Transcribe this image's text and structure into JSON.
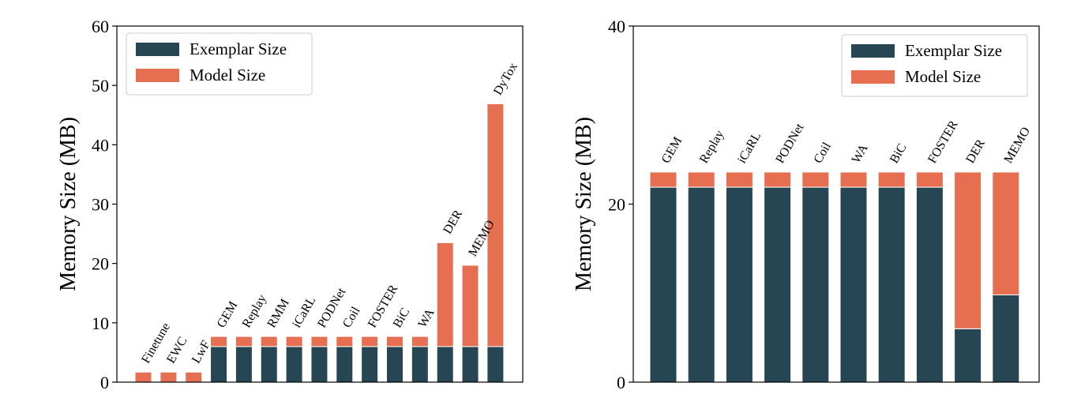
{
  "colors": {
    "exemplar": "#264653",
    "model": "#e76f51"
  },
  "chart_data": [
    {
      "type": "bar",
      "stacked": true,
      "categories": [
        "Finetune",
        "EWC",
        "LwF",
        "GEM",
        "Replay",
        "RMM",
        "iCaRL",
        "PODNet",
        "Coil",
        "FOSTER",
        "BiC",
        "WA",
        "DER",
        "MEMO",
        "DyTox"
      ],
      "series": [
        {
          "name": "Exemplar Size",
          "values": [
            0,
            0,
            0,
            6.0,
            6.0,
            6.0,
            6.0,
            6.0,
            6.0,
            6.0,
            6.0,
            6.0,
            6.0,
            6.0,
            6.0
          ]
        },
        {
          "name": "Model Size",
          "values": [
            1.7,
            1.7,
            1.7,
            1.7,
            1.7,
            1.7,
            1.7,
            1.7,
            1.7,
            1.7,
            1.7,
            1.7,
            17.5,
            13.7,
            40.9
          ]
        }
      ],
      "xlabel": "",
      "ylabel": "Memory Size (MB)",
      "ylim": [
        0,
        60
      ],
      "yticks": [
        0,
        10,
        20,
        30,
        40,
        50,
        60
      ],
      "grid": false,
      "legend_position": "top-left"
    },
    {
      "type": "bar",
      "stacked": true,
      "categories": [
        "GEM",
        "Replay",
        "iCaRL",
        "PODNet",
        "Coil",
        "WA",
        "BiC",
        "FOSTER",
        "DER",
        "MEMO"
      ],
      "series": [
        {
          "name": "Exemplar Size",
          "values": [
            21.9,
            21.9,
            21.9,
            21.9,
            21.9,
            21.9,
            21.9,
            21.9,
            6.0,
            9.8
          ]
        },
        {
          "name": "Model Size",
          "values": [
            1.7,
            1.7,
            1.7,
            1.7,
            1.7,
            1.7,
            1.7,
            1.7,
            17.6,
            13.8
          ]
        }
      ],
      "xlabel": "",
      "ylabel": "Memory Size (MB)",
      "ylim": [
        0,
        40
      ],
      "yticks": [
        0,
        20,
        40
      ],
      "grid": false,
      "legend_position": "top-right"
    }
  ]
}
